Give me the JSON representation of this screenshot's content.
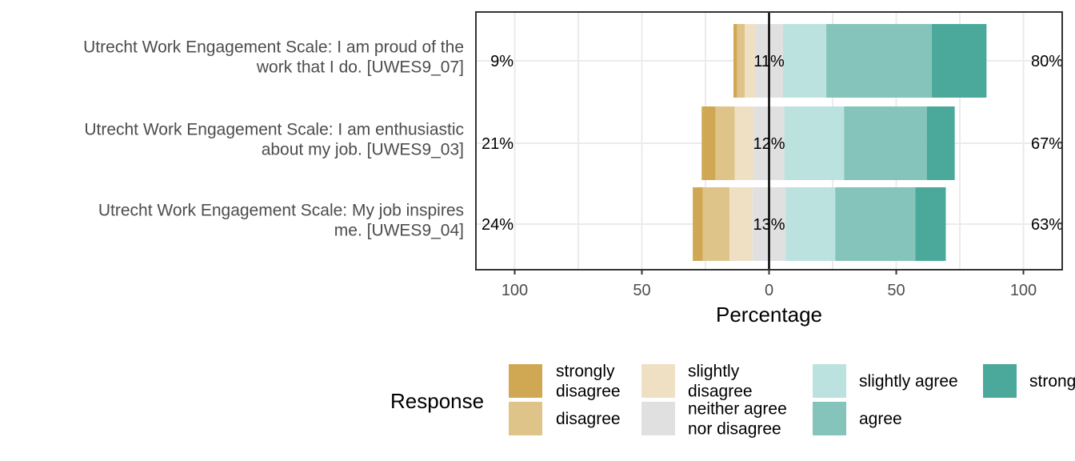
{
  "chart_data": {
    "type": "bar",
    "subtype": "diverging-stacked-likert",
    "xlabel": "Percentage",
    "xlim": [
      -100,
      100
    ],
    "xticks": [
      {
        "value": -100,
        "label": "100"
      },
      {
        "value": -50,
        "label": "50"
      },
      {
        "value": 0,
        "label": "0"
      },
      {
        "value": 50,
        "label": "50"
      },
      {
        "value": 100,
        "label": "100"
      }
    ],
    "grid": true,
    "legend_position": "bottom",
    "legend_title": "Response",
    "levels": [
      {
        "name": "strongly disagree",
        "label_lines": [
          "strongly",
          "disagree"
        ],
        "color": "#D0A854"
      },
      {
        "name": "disagree",
        "label_lines": [
          "disagree"
        ],
        "color": "#DFC489"
      },
      {
        "name": "slightly disagree",
        "label_lines": [
          "slightly",
          "disagree"
        ],
        "color": "#EFE0C4"
      },
      {
        "name": "neither agree nor disagree",
        "label_lines": [
          "neither agree",
          "nor disagree"
        ],
        "color": "#E0E0E0"
      },
      {
        "name": "slightly agree",
        "label_lines": [
          "slightly agree"
        ],
        "color": "#BCE2DF"
      },
      {
        "name": "agree",
        "label_lines": [
          "agree"
        ],
        "color": "#84C4BA"
      },
      {
        "name": "strongly agree",
        "label_lines": [
          "strongly agree"
        ],
        "color": "#4BA99B"
      }
    ],
    "items": [
      {
        "label_lines": [
          "Utrecht Work Engagement Scale: I am proud of the",
          "work that I do. [UWES9_07]"
        ],
        "values": [
          1.5,
          3.0,
          4.0,
          11.0,
          17.0,
          41.5,
          21.5
        ],
        "left_label": "9%",
        "center_label": "11%",
        "right_label": "80%"
      },
      {
        "label_lines": [
          "Utrecht Work Engagement Scale: I am enthusiastic",
          "about my job. [UWES9_03]"
        ],
        "values": [
          5.5,
          7.5,
          7.5,
          12.0,
          23.5,
          32.5,
          11.0
        ],
        "left_label": "21%",
        "center_label": "12%",
        "right_label": "67%"
      },
      {
        "label_lines": [
          "Utrecht Work Engagement Scale: My job inspires",
          "me. [UWES9_04]"
        ],
        "values": [
          4.0,
          10.5,
          9.0,
          13.0,
          19.5,
          31.5,
          12.0
        ],
        "left_label": "24%",
        "center_label": "13%",
        "right_label": "63%"
      }
    ]
  }
}
